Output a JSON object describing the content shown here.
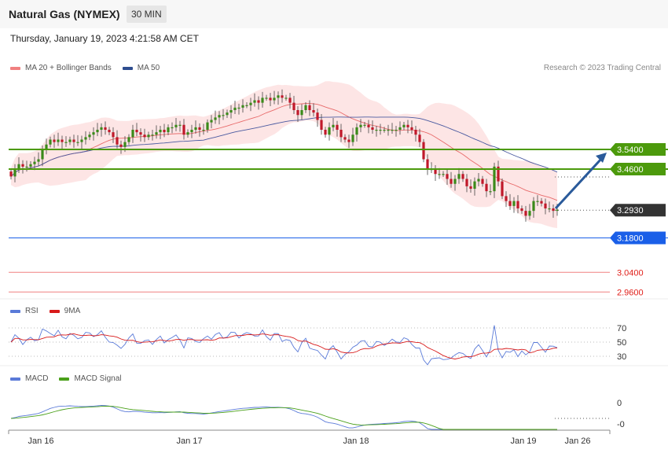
{
  "header": {
    "title": "Natural Gas (NYMEX)",
    "timeframe": "30 MIN"
  },
  "datetime": "Thursday, January 19, 2023 4:21:58 AM CET",
  "credit": "Research © 2023 Trading Central",
  "colors": {
    "bull": "#3a8a1a",
    "bear": "#c0182a",
    "ma20": "#e86a6a",
    "band": "#fde0e0",
    "ma50": "#4a5aa0",
    "resistance": "#4c9a0c",
    "support": "#1a5fe8",
    "last": "#333333",
    "red_level": "#e0201a",
    "arrow": "#2a5a9a",
    "rsi": "#5a7ad8",
    "ma9": "#d81a1a",
    "macd": "#5a7ad8",
    "macd_signal": "#4aa01a"
  },
  "legends": {
    "main": [
      {
        "label": "MA 20 + Bollinger Bands",
        "color": "#f08080"
      },
      {
        "label": "MA 50",
        "color": "#2e4d8f"
      }
    ],
    "rsi": [
      {
        "label": "RSI",
        "color": "#5a7ad8"
      },
      {
        "label": "9MA",
        "color": "#d81a1a"
      }
    ],
    "macd": [
      {
        "label": "MACD",
        "color": "#5a7ad8"
      },
      {
        "label": "MACD Signal",
        "color": "#4aa01a"
      }
    ]
  },
  "chart_data": {
    "type": "candlestick",
    "instrument": "Natural Gas (NYMEX)",
    "interval": "30 MIN",
    "price_range": [
      2.9,
      3.76
    ],
    "x_labels": [
      "Jan 16",
      "Jan 17",
      "Jan 18",
      "Jan 19",
      "Jan 26"
    ],
    "closes": [
      3.43,
      3.46,
      3.48,
      3.47,
      3.47,
      3.48,
      3.49,
      3.5,
      3.54,
      3.56,
      3.58,
      3.57,
      3.58,
      3.57,
      3.57,
      3.58,
      3.57,
      3.57,
      3.58,
      3.59,
      3.6,
      3.61,
      3.62,
      3.63,
      3.62,
      3.61,
      3.59,
      3.56,
      3.55,
      3.57,
      3.59,
      3.62,
      3.61,
      3.6,
      3.59,
      3.6,
      3.6,
      3.61,
      3.62,
      3.61,
      3.63,
      3.63,
      3.64,
      3.64,
      3.6,
      3.61,
      3.62,
      3.63,
      3.62,
      3.62,
      3.65,
      3.66,
      3.67,
      3.68,
      3.68,
      3.69,
      3.7,
      3.71,
      3.71,
      3.72,
      3.72,
      3.73,
      3.74,
      3.73,
      3.75,
      3.75,
      3.74,
      3.75,
      3.76,
      3.75,
      3.75,
      3.73,
      3.7,
      3.68,
      3.7,
      3.72,
      3.7,
      3.69,
      3.66,
      3.62,
      3.6,
      3.63,
      3.64,
      3.62,
      3.59,
      3.58,
      3.57,
      3.6,
      3.63,
      3.64,
      3.64,
      3.63,
      3.62,
      3.62,
      3.62,
      3.62,
      3.62,
      3.62,
      3.62,
      3.63,
      3.64,
      3.63,
      3.62,
      3.6,
      3.57,
      3.5,
      3.46,
      3.46,
      3.44,
      3.44,
      3.44,
      3.42,
      3.4,
      3.42,
      3.44,
      3.42,
      3.39,
      3.38,
      3.41,
      3.42,
      3.4,
      3.37,
      3.37,
      3.47,
      3.41,
      3.35,
      3.33,
      3.31,
      3.33,
      3.3,
      3.29,
      3.27,
      3.29,
      3.33,
      3.33,
      3.32,
      3.3,
      3.3,
      3.29,
      3.295
    ],
    "resistance": [
      3.54,
      3.46
    ],
    "last_price": 3.293,
    "support": 3.18,
    "lower_levels": [
      3.04,
      2.96
    ],
    "levels": [
      {
        "label": "3.5400",
        "value": 3.54,
        "kind": "resistance"
      },
      {
        "label": "3.4600",
        "value": 3.46,
        "kind": "resistance"
      },
      {
        "label": "3.2930",
        "value": 3.293,
        "kind": "last"
      },
      {
        "label": "3.1800",
        "value": 3.18,
        "kind": "support"
      },
      {
        "label": "3.0400",
        "value": 3.04,
        "kind": "red"
      },
      {
        "label": "2.9600",
        "value": 2.96,
        "kind": "red"
      }
    ],
    "rsi_ticks": [
      "70",
      "50",
      "30"
    ],
    "macd_ticks": [
      "0",
      "-0"
    ]
  }
}
